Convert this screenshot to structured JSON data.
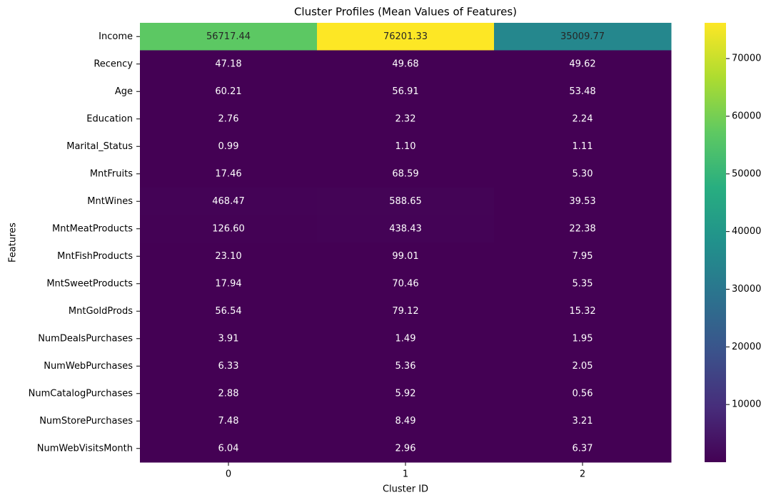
{
  "chart_data": {
    "type": "heatmap",
    "title": "Cluster Profiles (Mean Values of Features)",
    "xlabel": "Cluster ID",
    "ylabel": "Features",
    "categories": [
      "0",
      "1",
      "2"
    ],
    "rows": [
      "Income",
      "Recency",
      "Age",
      "Education",
      "Marital_Status",
      "MntFruits",
      "MntWines",
      "MntMeatProducts",
      "MntFishProducts",
      "MntSweetProducts",
      "MntGoldProds",
      "NumDealsPurchases",
      "NumWebPurchases",
      "NumCatalogPurchases",
      "NumStorePurchases",
      "NumWebVisitsMonth"
    ],
    "values": [
      [
        56717.44,
        76201.33,
        35009.77
      ],
      [
        47.18,
        49.68,
        49.62
      ],
      [
        60.21,
        56.91,
        53.48
      ],
      [
        2.76,
        2.32,
        2.24
      ],
      [
        0.99,
        1.1,
        1.11
      ],
      [
        17.46,
        68.59,
        5.3
      ],
      [
        468.47,
        588.65,
        39.53
      ],
      [
        126.6,
        438.43,
        22.38
      ],
      [
        23.1,
        99.01,
        7.95
      ],
      [
        17.94,
        70.46,
        5.35
      ],
      [
        56.54,
        79.12,
        15.32
      ],
      [
        3.91,
        1.49,
        1.95
      ],
      [
        6.33,
        5.36,
        2.05
      ],
      [
        2.88,
        5.92,
        0.56
      ],
      [
        7.48,
        8.49,
        3.21
      ],
      [
        6.04,
        2.96,
        6.37
      ]
    ],
    "value_labels": [
      [
        "56717.44",
        "76201.33",
        "35009.77"
      ],
      [
        "47.18",
        "49.68",
        "49.62"
      ],
      [
        "60.21",
        "56.91",
        "53.48"
      ],
      [
        "2.76",
        "2.32",
        "2.24"
      ],
      [
        "0.99",
        "1.10",
        "1.11"
      ],
      [
        "17.46",
        "68.59",
        "5.30"
      ],
      [
        "468.47",
        "588.65",
        "39.53"
      ],
      [
        "126.60",
        "438.43",
        "22.38"
      ],
      [
        "23.10",
        "99.01",
        "7.95"
      ],
      [
        "17.94",
        "70.46",
        "5.35"
      ],
      [
        "56.54",
        "79.12",
        "15.32"
      ],
      [
        "3.91",
        "1.49",
        "1.95"
      ],
      [
        "6.33",
        "5.36",
        "2.05"
      ],
      [
        "2.88",
        "5.92",
        "0.56"
      ],
      [
        "7.48",
        "8.49",
        "3.21"
      ],
      [
        "6.04",
        "2.96",
        "6.37"
      ]
    ],
    "colormap": "viridis",
    "clim": [
      0.56,
      76201.33
    ],
    "cticks": [
      10000,
      20000,
      30000,
      40000,
      50000,
      60000,
      70000
    ]
  }
}
